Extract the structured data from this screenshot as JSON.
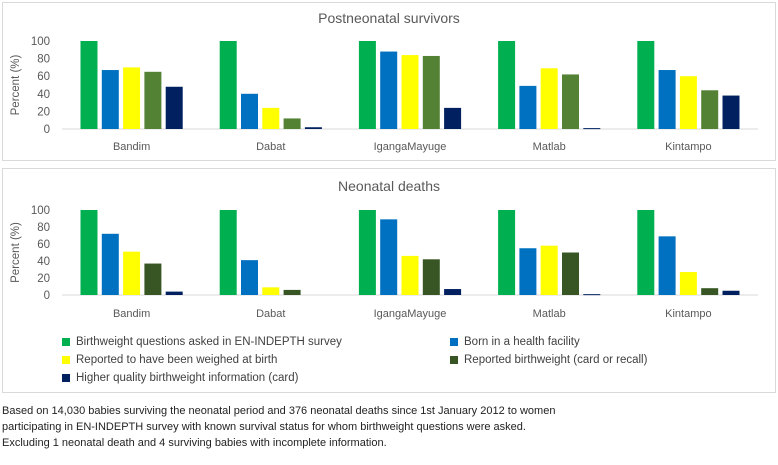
{
  "chart_data": [
    {
      "type": "bar",
      "title": "Postneonatal survivors",
      "ylabel": "Percent (%)",
      "ylim": [
        0,
        100
      ],
      "yticks": [
        0,
        20,
        40,
        60,
        80,
        100
      ],
      "categories": [
        "Bandim",
        "Dabat",
        "IgangaMayuge",
        "Matlab",
        "Kintampo"
      ],
      "series": [
        {
          "name": "Birthweight questions asked in EN-INDEPTH survey",
          "color": "#00b050",
          "values": [
            100,
            100,
            100,
            100,
            100
          ]
        },
        {
          "name": "Born in a health facility",
          "color": "#0070c0",
          "values": [
            67,
            40,
            88,
            49,
            67
          ]
        },
        {
          "name": "Reported to have been weighed at birth",
          "color": "#ffff00",
          "values": [
            70,
            24,
            84,
            69,
            60
          ]
        },
        {
          "name": "Reported birthweight (card or recall)",
          "color": "#548235",
          "values": [
            65,
            12,
            83,
            62,
            44
          ]
        },
        {
          "name": "Higher quality birthweight information (card)",
          "color": "#002060",
          "values": [
            48,
            2,
            24,
            1,
            38
          ]
        }
      ]
    },
    {
      "type": "bar",
      "title": "Neonatal deaths",
      "ylabel": "Percent (%)",
      "ylim": [
        0,
        100
      ],
      "yticks": [
        0,
        20,
        40,
        60,
        80,
        100
      ],
      "categories": [
        "Bandim",
        "Dabat",
        "IgangaMayuge",
        "Matlab",
        "Kintampo"
      ],
      "series": [
        {
          "name": "Birthweight questions asked in EN-INDEPTH survey",
          "color": "#00b050",
          "values": [
            100,
            100,
            100,
            100,
            100
          ]
        },
        {
          "name": "Born in a health facility",
          "color": "#0070c0",
          "values": [
            72,
            41,
            89,
            55,
            69
          ]
        },
        {
          "name": "Reported to have been weighed at birth",
          "color": "#ffff00",
          "values": [
            51,
            9,
            46,
            58,
            27
          ]
        },
        {
          "name": "Reported birthweight (card or recall)",
          "color": "#375623",
          "values": [
            37,
            6,
            42,
            50,
            8
          ]
        },
        {
          "name": "Higher quality birthweight information (card)",
          "color": "#002060",
          "values": [
            4,
            0,
            7,
            1,
            5
          ]
        }
      ]
    }
  ],
  "legend": [
    {
      "label": "Birthweight questions asked in EN-INDEPTH survey",
      "color": "#00b050"
    },
    {
      "label": "Born in a health facility",
      "color": "#0070c0"
    },
    {
      "label": "Reported to have been weighed at birth",
      "color": "#ffff00"
    },
    {
      "label": "Reported birthweight (card or recall)",
      "color": "#375623"
    },
    {
      "label": "Higher quality birthweight information (card)",
      "color": "#002060"
    }
  ],
  "footnote": [
    "Based on 14,030 babies surviving the neonatal period and 376 neonatal deaths since 1st January 2012 to women",
    "participating in EN-INDEPTH survey with known survival status for whom birthweight questions were asked.",
    "Excluding 1 neonatal death and 4 surviving babies with incomplete information."
  ]
}
